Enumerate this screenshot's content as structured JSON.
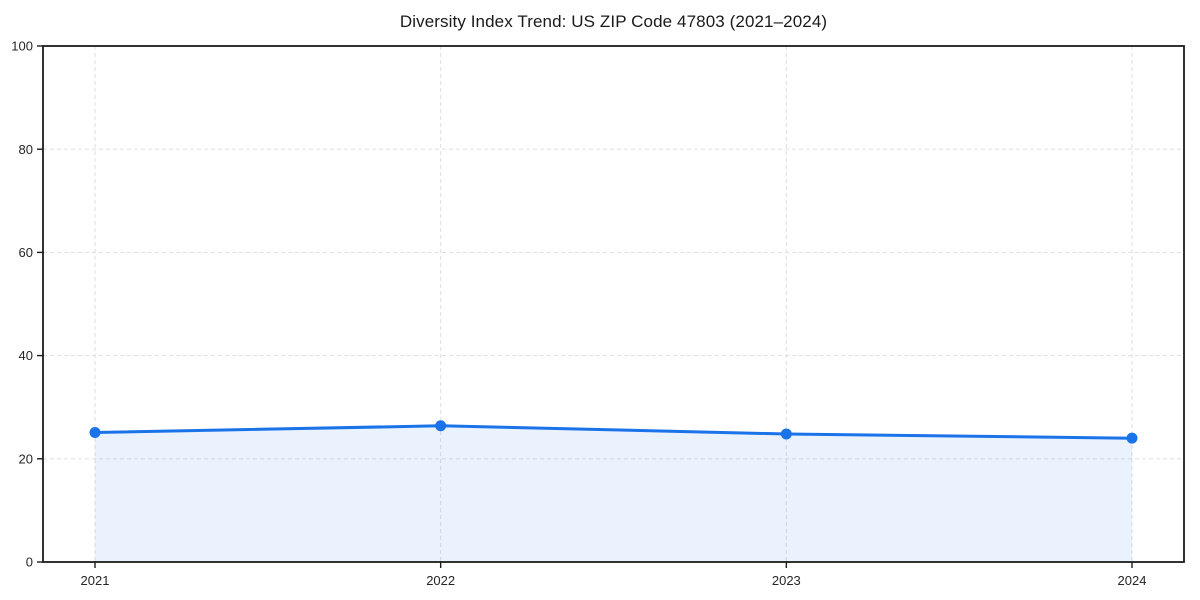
{
  "chart_data": {
    "type": "area",
    "title": "Diversity Index Trend: US ZIP Code 47803 (2021–2024)",
    "x": [
      2021,
      2022,
      2023,
      2024
    ],
    "series": [
      {
        "name": "Diversity Index",
        "values": [
          25.1,
          26.4,
          24.8,
          24.0
        ]
      }
    ],
    "xlabel": "",
    "ylabel": "",
    "ylim": [
      0,
      100
    ],
    "yticks": [
      0,
      20,
      40,
      60,
      80,
      100
    ],
    "xticks": [
      "2021",
      "2022",
      "2023",
      "2024"
    ],
    "grid": true,
    "grid_style": "dashed",
    "legend": false,
    "colors": {
      "line": "#1a73e8",
      "marker": "#1a73e8",
      "fill": "#1a73e8",
      "fill_opacity": 0.09,
      "grid": "#e2e2e2",
      "spine": "#1c1c1c",
      "tick_label": "#262626",
      "title": "#1a1a1a",
      "background": "#ffffff"
    }
  }
}
